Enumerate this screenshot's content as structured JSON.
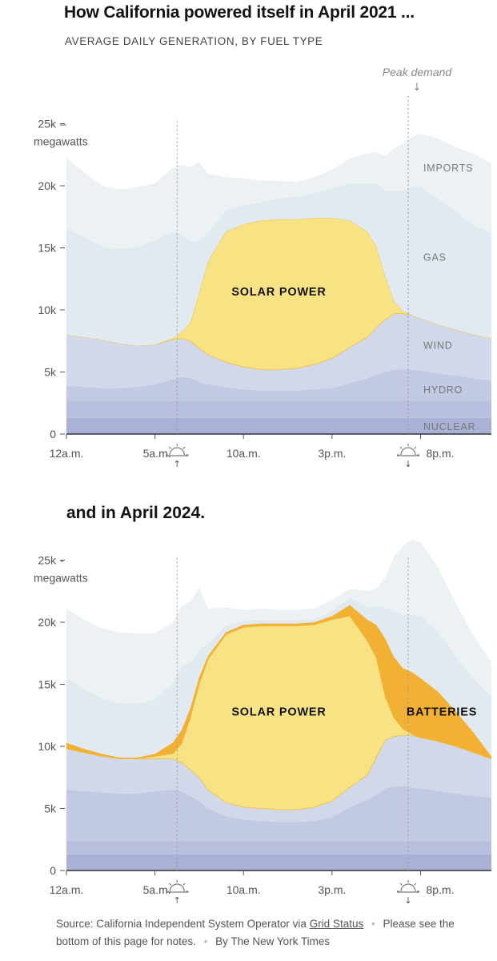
{
  "header": {
    "title": "How California powered itself in April 2021 ...",
    "subtitle": "AVERAGE DAILY GENERATION, BY FUEL TYPE",
    "title2": "and in April 2024.",
    "peak_label": "Peak demand",
    "peak_arrow": "↓"
  },
  "footer": {
    "source_prefix": "Source: California Independent System Operator via",
    "source_link": "Grid Status",
    "sep": "•",
    "notes": "Please see the bottom of this page for notes.",
    "byline": "By The New York Times"
  },
  "colors": {
    "nuclear": "#a9b2d6",
    "other": "#b8c0dd",
    "hydro": "#c1c9e3",
    "wind": "#d0d8ea",
    "gas": "#e1e9f1",
    "imports": "#ecf2f3",
    "solar": "#f8e384",
    "solar_edge": "#f0c44f",
    "batteries": "#f2b134",
    "axis": "#333333",
    "dotted": "#999999"
  },
  "chart_data": [
    {
      "type": "area",
      "stacked": true,
      "title": "How California powered itself in April 2021 ...",
      "subtitle": "AVERAGE DAILY GENERATION, BY FUEL TYPE",
      "ylabel": "megawatts",
      "ylim": [
        0,
        28000
      ],
      "yticks": [
        0,
        5000,
        10000,
        15000,
        20000,
        25000
      ],
      "ytick_labels": [
        "0",
        "5k",
        "10k",
        "15k",
        "20k",
        "25k"
      ],
      "xlim": [
        0,
        24
      ],
      "xticks": [
        0,
        5,
        10,
        15,
        20
      ],
      "xtick_labels": [
        "12a.m.",
        "5a.m.",
        "10a.m.",
        "3p.m.",
        "8p.m."
      ],
      "sunrise": 6.25,
      "sunset": 19.3,
      "x": [
        0,
        1,
        2,
        3,
        4,
        5,
        6,
        6.5,
        7,
        7.5,
        8,
        9,
        10,
        11,
        12,
        13,
        14,
        15,
        16,
        17,
        17.5,
        18,
        18.5,
        19,
        19.5,
        20,
        21,
        22,
        23,
        24
      ],
      "series": [
        {
          "name": "NUCLEAR",
          "color_key": "nuclear",
          "label": "NUCLEAR",
          "label_value": 650,
          "values": [
            1300,
            1300,
            1300,
            1300,
            1300,
            1300,
            1300,
            1300,
            1300,
            1300,
            1300,
            1300,
            1300,
            1300,
            1300,
            1300,
            1300,
            1300,
            1300,
            1300,
            1300,
            1300,
            1300,
            1300,
            1300,
            1300,
            1300,
            1300,
            1300,
            1300
          ]
        },
        {
          "name": "OTHER",
          "color_key": "other",
          "label": "",
          "label_value": 0,
          "values": [
            1400,
            1400,
            1400,
            1400,
            1400,
            1400,
            1400,
            1400,
            1400,
            1400,
            1400,
            1400,
            1400,
            1400,
            1400,
            1400,
            1400,
            1400,
            1400,
            1400,
            1400,
            1400,
            1400,
            1400,
            1400,
            1400,
            1400,
            1400,
            1400,
            1400
          ]
        },
        {
          "name": "HYDRO",
          "color_key": "hydro",
          "label": "HYDRO",
          "label_value": 3600,
          "values": [
            1200,
            1100,
            1000,
            1000,
            1100,
            1300,
            1700,
            1900,
            1800,
            1500,
            1300,
            1100,
            900,
            800,
            800,
            800,
            900,
            1000,
            1400,
            1800,
            2100,
            2300,
            2500,
            2500,
            2500,
            2400,
            2200,
            2000,
            1800,
            1600
          ]
        },
        {
          "name": "WIND",
          "color_key": "wind",
          "label": "WIND",
          "label_value": 7200,
          "values": [
            4100,
            4000,
            3900,
            3600,
            3300,
            3200,
            3200,
            3100,
            3000,
            2700,
            2400,
            2000,
            1800,
            1700,
            1700,
            1800,
            2000,
            2400,
            2900,
            3300,
            3800,
            4200,
            4500,
            4500,
            4400,
            4200,
            3900,
            3700,
            3500,
            3400
          ]
        },
        {
          "name": "SOLAR POWER",
          "color_key": "solar",
          "label": "SOLAR POWER",
          "label_value": 11500,
          "values": [
            0,
            0,
            0,
            0,
            0,
            0,
            100,
            500,
            1500,
            4500,
            7500,
            10500,
            11500,
            12000,
            12100,
            12000,
            11800,
            11300,
            10200,
            8500,
            6500,
            3500,
            1000,
            200,
            0,
            0,
            0,
            0,
            0,
            0
          ]
        },
        {
          "name": "GAS",
          "color_key": "gas",
          "label": "GAS",
          "label_value": 14300,
          "values": [
            8600,
            8100,
            7500,
            7600,
            8000,
            8400,
            8600,
            7900,
            6500,
            4200,
            2300,
            1700,
            1500,
            1500,
            1700,
            1800,
            2000,
            2400,
            3000,
            3900,
            5100,
            6900,
            8900,
            9700,
            10300,
            10600,
            10200,
            9500,
            8800,
            8500
          ]
        },
        {
          "name": "IMPORTS",
          "color_key": "imports",
          "label": "IMPORTS",
          "label_value": 21500,
          "values": [
            5600,
            5200,
            4900,
            4800,
            4800,
            4600,
            5100,
            5600,
            6000,
            6300,
            4800,
            2700,
            2200,
            1700,
            1400,
            1200,
            1300,
            1500,
            2000,
            2400,
            2500,
            2800,
            3400,
            3800,
            4000,
            4300,
            4800,
            5200,
            5800,
            5600
          ]
        }
      ]
    },
    {
      "type": "area",
      "stacked": true,
      "title": "and in April 2024.",
      "ylabel": "megawatts",
      "ylim": [
        0,
        28000
      ],
      "yticks": [
        0,
        5000,
        10000,
        15000,
        20000,
        25000
      ],
      "ytick_labels": [
        "0",
        "5k",
        "10k",
        "15k",
        "20k",
        "25k"
      ],
      "xlim": [
        0,
        24
      ],
      "xticks": [
        0,
        5,
        10,
        15,
        20
      ],
      "xtick_labels": [
        "12a.m.",
        "5a.m.",
        "10a.m.",
        "3p.m.",
        "8p.m."
      ],
      "sunrise": 6.25,
      "sunset": 19.3,
      "x": [
        0,
        1,
        2,
        3,
        4,
        5,
        6,
        6.5,
        7,
        7.5,
        8,
        9,
        10,
        11,
        12,
        13,
        14,
        15,
        16,
        17,
        17.5,
        18,
        18.5,
        19,
        19.5,
        20,
        21,
        22,
        23,
        24
      ],
      "series": [
        {
          "name": "NUCLEAR",
          "color_key": "nuclear",
          "label": "",
          "label_value": 0,
          "values": [
            1300,
            1300,
            1300,
            1300,
            1300,
            1300,
            1300,
            1300,
            1300,
            1300,
            1300,
            1300,
            1300,
            1300,
            1300,
            1300,
            1300,
            1300,
            1300,
            1300,
            1300,
            1300,
            1300,
            1300,
            1300,
            1300,
            1300,
            1300,
            1300,
            1300
          ]
        },
        {
          "name": "OTHER",
          "color_key": "other",
          "label": "",
          "label_value": 0,
          "values": [
            1100,
            1100,
            1100,
            1100,
            1100,
            1100,
            1100,
            1100,
            1100,
            1100,
            1100,
            1100,
            1100,
            1100,
            1100,
            1100,
            1100,
            1100,
            1100,
            1100,
            1100,
            1100,
            1100,
            1100,
            1100,
            1100,
            1100,
            1100,
            1100,
            1100
          ]
        },
        {
          "name": "HYDRO",
          "color_key": "hydro",
          "label": "",
          "label_value": 0,
          "values": [
            4100,
            4000,
            3900,
            3800,
            3800,
            4000,
            4100,
            4000,
            3600,
            3200,
            2600,
            2000,
            1700,
            1600,
            1500,
            1500,
            1600,
            1900,
            2700,
            3300,
            3700,
            4200,
            4400,
            4400,
            4300,
            4200,
            4000,
            3800,
            3600,
            3500
          ]
        },
        {
          "name": "WIND",
          "color_key": "wind",
          "label": "",
          "label_value": 0,
          "values": [
            3300,
            3100,
            2900,
            2800,
            2800,
            2600,
            2500,
            2300,
            2100,
            1900,
            1500,
            1100,
            1000,
            1000,
            1000,
            1000,
            1100,
            1300,
            1600,
            2000,
            3000,
            3900,
            4000,
            4100,
            4200,
            4100,
            4000,
            3800,
            3500,
            3100
          ]
        },
        {
          "name": "SOLAR POWER",
          "color_key": "solar",
          "label": "SOLAR POWER",
          "label_value": 12800,
          "values": [
            0,
            0,
            0,
            0,
            0,
            200,
            400,
            1500,
            4200,
            7500,
            10500,
            13500,
            14500,
            14700,
            14800,
            14800,
            14700,
            14600,
            13800,
            10800,
            8000,
            3500,
            1500,
            500,
            100,
            0,
            0,
            0,
            0,
            0
          ]
        },
        {
          "name": "BATTERIES",
          "color_key": "batteries",
          "label": "BATTERIES",
          "label_value": 12800,
          "values": [
            500,
            300,
            200,
            100,
            100,
            200,
            900,
            1100,
            800,
            600,
            300,
            200,
            200,
            200,
            200,
            200,
            200,
            300,
            900,
            1700,
            2700,
            4700,
            4900,
            4900,
            5000,
            4800,
            4000,
            2800,
            1600,
            200
          ]
        },
        {
          "name": "GAS",
          "color_key": "gas",
          "label": "",
          "label_value": 0,
          "values": [
            5200,
            4800,
            4500,
            4400,
            4300,
            4400,
            4800,
            5200,
            3600,
            2200,
            1000,
            500,
            300,
            300,
            300,
            300,
            300,
            400,
            600,
            1000,
            1500,
            2500,
            3700,
            4300,
            4600,
            5000,
            4800,
            4400,
            4400,
            4800
          ]
        },
        {
          "name": "IMPORTS",
          "color_key": "imports",
          "label": "",
          "label_value": 0,
          "values": [
            5600,
            5600,
            5600,
            5700,
            5700,
            5300,
            4900,
            4800,
            5000,
            5000,
            2800,
            1500,
            900,
            900,
            800,
            800,
            800,
            900,
            700,
            1300,
            1400,
            2400,
            4400,
            5500,
            6100,
            5900,
            5200,
            4300,
            3400,
            2800
          ]
        }
      ]
    }
  ]
}
